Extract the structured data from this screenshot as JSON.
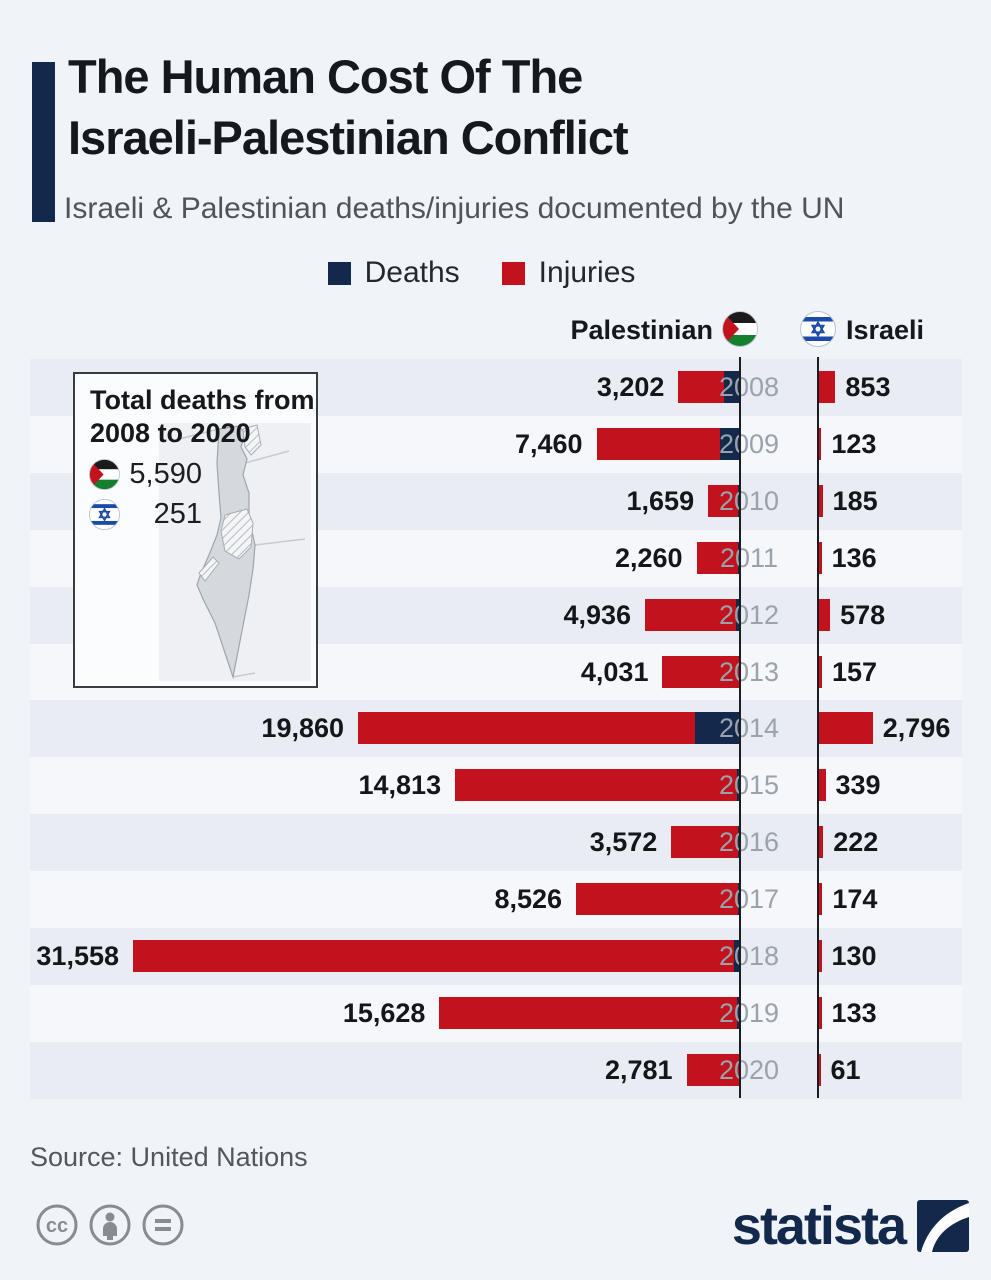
{
  "header": {
    "title_line1": "The Human Cost Of The",
    "title_line2": "Israeli-Palestinian Conflict",
    "subtitle": "Israeli & Palestinian deaths/injuries documented by the UN",
    "accent_color": "#13294b"
  },
  "legend": [
    {
      "label": "Deaths",
      "color": "#13294b"
    },
    {
      "label": "Injuries",
      "color": "#c2121d"
    }
  ],
  "columns": {
    "left_label": "Palestinian",
    "right_label": "Israeli",
    "left_flag": "palestinian-flag",
    "right_flag": "israeli-flag"
  },
  "inset": {
    "title_line1": "Total deaths from",
    "title_line2": "2008 to 2020",
    "palestinian_total": "5,590",
    "israeli_total": "251"
  },
  "chart_data": {
    "type": "bar",
    "orientation": "horizontal-diverging",
    "title": "Israeli & Palestinian deaths/injuries documented by the UN",
    "categories": [
      "2008",
      "2009",
      "2010",
      "2011",
      "2012",
      "2013",
      "2014",
      "2015",
      "2016",
      "2017",
      "2018",
      "2019",
      "2020"
    ],
    "axis_max": 31558,
    "grid": "alternating-row-bands",
    "legend_position": "top-center",
    "series": [
      {
        "name": "Palestinian casualties (bar, extends left)",
        "color": "#c2121d",
        "values": [
          3202,
          7460,
          1659,
          2260,
          4936,
          4031,
          19860,
          14813,
          3572,
          8526,
          31558,
          15628,
          2781
        ],
        "labels": [
          "3,202",
          "7,460",
          "1,659",
          "2,260",
          "4,936",
          "4,031",
          "19,860",
          "14,813",
          "3,572",
          "8,526",
          "31,558",
          "15,628",
          "2,781"
        ]
      },
      {
        "name": "Palestinian deaths segment (navy, estimated from bar)",
        "color": "#13294b",
        "values": [
          830,
          1040,
          90,
          120,
          210,
          40,
          2330,
          180,
          110,
          80,
          300,
          140,
          30
        ]
      },
      {
        "name": "Israeli casualties (bar, extends right)",
        "color": "#c2121d",
        "values": [
          853,
          123,
          185,
          136,
          578,
          157,
          2796,
          339,
          222,
          174,
          130,
          133,
          61
        ],
        "labels": [
          "853",
          "123",
          "185",
          "136",
          "578",
          "157",
          "2,796",
          "339",
          "222",
          "174",
          "130",
          "133",
          "61"
        ]
      }
    ],
    "totals": {
      "palestinian_deaths_2008_2020": "5,590",
      "israeli_deaths_2008_2020": "251"
    }
  },
  "footer": {
    "source": "Source: United Nations",
    "brand": "statista",
    "license_icons": [
      "cc-icon",
      "attribution-person-icon",
      "equals-icon"
    ]
  }
}
